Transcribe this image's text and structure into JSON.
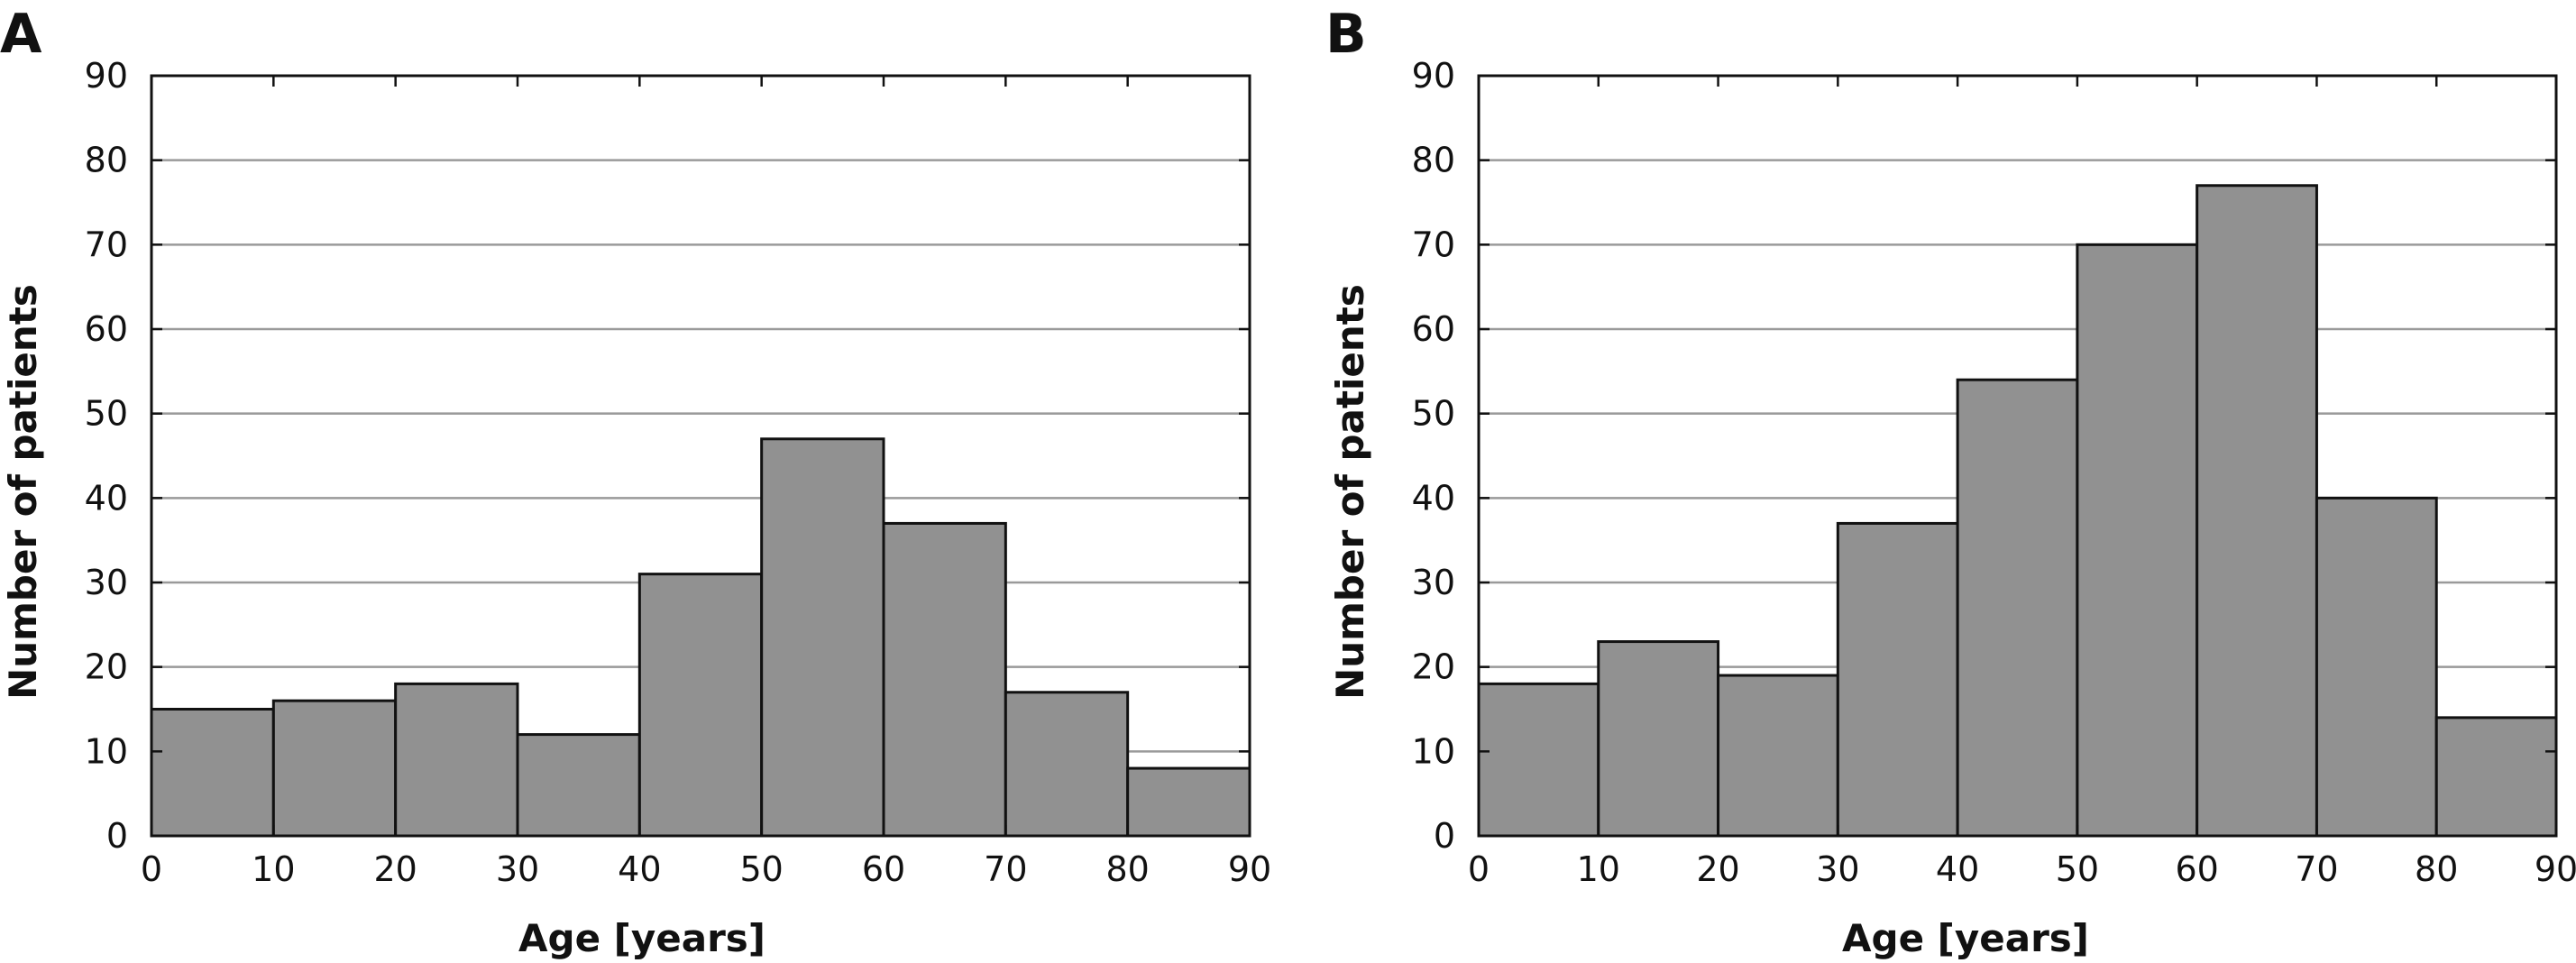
{
  "chart_data": [
    {
      "type": "bar",
      "panel": "A",
      "bins": [
        [
          0,
          10
        ],
        [
          10,
          20
        ],
        [
          20,
          30
        ],
        [
          30,
          40
        ],
        [
          40,
          50
        ],
        [
          50,
          60
        ],
        [
          60,
          70
        ],
        [
          70,
          80
        ],
        [
          80,
          90
        ]
      ],
      "values": [
        15,
        16,
        18,
        12,
        31,
        47,
        37,
        17,
        8
      ],
      "xlabel": "Age [years]",
      "ylabel": "Number of patients",
      "xlim": [
        0,
        90
      ],
      "ylim": [
        0,
        90
      ],
      "x_ticks": [
        "0",
        "10",
        "20",
        "30",
        "40",
        "50",
        "60",
        "70",
        "80",
        "90"
      ],
      "y_ticks": [
        "0",
        "10",
        "20",
        "30",
        "40",
        "50",
        "60",
        "70",
        "80",
        "90"
      ],
      "grid": "horizontal",
      "bar_color": "#919191"
    },
    {
      "type": "bar",
      "panel": "B",
      "bins": [
        [
          0,
          10
        ],
        [
          10,
          20
        ],
        [
          20,
          30
        ],
        [
          30,
          40
        ],
        [
          40,
          50
        ],
        [
          50,
          60
        ],
        [
          60,
          70
        ],
        [
          70,
          80
        ],
        [
          80,
          90
        ]
      ],
      "values": [
        18,
        23,
        19,
        37,
        54,
        70,
        77,
        40,
        14
      ],
      "xlabel": "Age [years]",
      "ylabel": "Number of patients",
      "xlim": [
        0,
        90
      ],
      "ylim": [
        0,
        90
      ],
      "x_ticks": [
        "0",
        "10",
        "20",
        "30",
        "40",
        "50",
        "60",
        "70",
        "80",
        "90"
      ],
      "y_ticks": [
        "0",
        "10",
        "20",
        "30",
        "40",
        "50",
        "60",
        "70",
        "80",
        "90"
      ],
      "grid": "horizontal",
      "bar_color": "#919191"
    }
  ]
}
